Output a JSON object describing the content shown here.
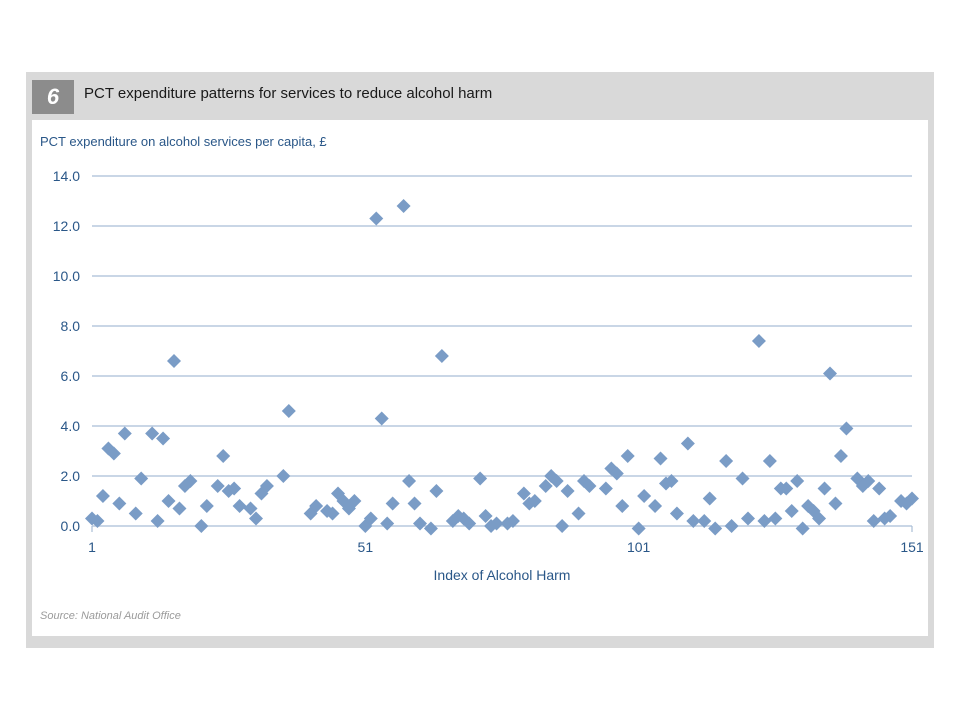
{
  "figure": {
    "number": "6",
    "title": "PCT expenditure patterns for services to reduce alcohol harm",
    "source": "Source: National Audit Office"
  },
  "colors": {
    "marker": "#7a9cc6",
    "grid": "#a9bdd6",
    "text": "#2a5788",
    "frame": "#d9d9d9",
    "badge": "#8c8c8c"
  },
  "chart_data": {
    "type": "scatter",
    "title": "",
    "ylabel": "PCT expenditure on alcohol services per capita, £",
    "xlabel": "Index of Alcohol Harm",
    "xlim": [
      1,
      152
    ],
    "ylim": [
      0,
      14
    ],
    "xticks": [
      1,
      51,
      101,
      151
    ],
    "yticks": [
      "0.0",
      "2.0",
      "4.0",
      "6.0",
      "8.0",
      "10.0",
      "12.0",
      "14.0"
    ],
    "grid": true,
    "marker": "diamond",
    "x": [
      1,
      2,
      3,
      4,
      5,
      6,
      7,
      9,
      10,
      12,
      13,
      14,
      15,
      16,
      17,
      18,
      19,
      21,
      22,
      24,
      25,
      26,
      27,
      28,
      30,
      31,
      32,
      33,
      36,
      37,
      41,
      42,
      44,
      45,
      46,
      47,
      48,
      49,
      51,
      52,
      53,
      54,
      55,
      56,
      58,
      59,
      60,
      61,
      63,
      64,
      65,
      67,
      68,
      69,
      70,
      72,
      73,
      74,
      75,
      77,
      78,
      80,
      81,
      82,
      84,
      85,
      86,
      87,
      88,
      90,
      91,
      92,
      95,
      96,
      97,
      98,
      99,
      101,
      102,
      104,
      105,
      106,
      107,
      108,
      110,
      111,
      113,
      114,
      115,
      117,
      118,
      120,
      121,
      123,
      124,
      125,
      126,
      127,
      128,
      129,
      130,
      131,
      132,
      133,
      134,
      135,
      136,
      137,
      138,
      139,
      141,
      142,
      143,
      144,
      145,
      146,
      147,
      149,
      150,
      151
    ],
    "y": [
      0.3,
      0.2,
      1.2,
      3.1,
      2.9,
      0.9,
      3.7,
      0.5,
      1.9,
      3.7,
      0.2,
      3.5,
      1.0,
      6.6,
      0.7,
      1.6,
      1.8,
      0.0,
      0.8,
      1.6,
      2.8,
      1.4,
      1.5,
      0.8,
      0.7,
      0.3,
      1.3,
      1.6,
      2.0,
      4.6,
      0.5,
      0.8,
      0.6,
      0.5,
      1.3,
      1.0,
      0.7,
      1.0,
      0.0,
      0.3,
      12.3,
      4.3,
      0.1,
      0.9,
      12.8,
      1.8,
      0.9,
      0.1,
      -0.1,
      1.4,
      6.8,
      0.2,
      0.4,
      0.3,
      0.1,
      1.9,
      0.4,
      0.0,
      0.1,
      0.1,
      0.2,
      1.3,
      0.9,
      1.0,
      1.6,
      2.0,
      1.8,
      0.0,
      1.4,
      0.5,
      1.8,
      1.6,
      1.5,
      2.3,
      2.1,
      0.8,
      2.8,
      -0.1,
      1.2,
      0.8,
      2.7,
      1.7,
      1.8,
      0.5,
      3.3,
      0.2,
      0.2,
      1.1,
      -0.1,
      2.6,
      0.0,
      1.9,
      0.3,
      7.4,
      0.2,
      2.6,
      0.3,
      1.5,
      1.5,
      0.6,
      1.8,
      -0.1,
      0.8,
      0.6,
      0.3,
      1.5,
      6.1,
      0.9,
      2.8,
      3.9,
      1.9,
      1.6,
      1.8,
      0.2,
      1.5,
      0.3,
      0.4,
      1.0,
      0.9,
      1.1
    ]
  }
}
